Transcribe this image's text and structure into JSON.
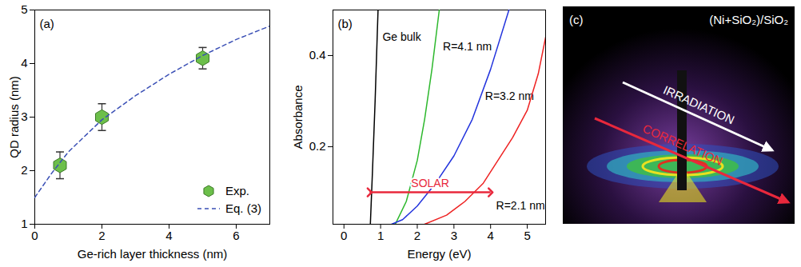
{
  "chart_data": [
    {
      "type": "scatter",
      "panel_label": "(a)",
      "x_label": "Ge-rich layer thickness (nm)",
      "y_label": "QD radius (nm)",
      "xlim": [
        0,
        7
      ],
      "xticks": [
        0,
        2,
        4,
        6
      ],
      "ylim": [
        1,
        5
      ],
      "yticks": [
        1,
        2,
        3,
        4,
        5
      ],
      "legend": "lower right",
      "series": [
        {
          "name": "Exp.",
          "type": "scatter",
          "marker": "hexagon",
          "color": "#6cbf4a",
          "x": [
            0.75,
            2,
            5
          ],
          "values": [
            2.1,
            3.0,
            4.1
          ],
          "errors": [
            0.25,
            0.25,
            0.2
          ]
        },
        {
          "name": "Eq. (3)",
          "type": "line",
          "line_style": "dashed",
          "color": "#3a4fb5",
          "x": [
            0,
            0.5,
            1,
            2,
            3,
            4,
            5,
            6,
            7
          ],
          "values": [
            1.5,
            1.95,
            2.35,
            2.95,
            3.4,
            3.8,
            4.15,
            4.45,
            4.7
          ]
        }
      ]
    },
    {
      "type": "line",
      "panel_label": "(b)",
      "x_label": "Energy (eV)",
      "y_label": "Absorbance",
      "xlim": [
        -0.3,
        5.5
      ],
      "xticks": [
        0,
        1,
        2,
        3,
        4,
        5
      ],
      "ylim": [
        0.03,
        0.5
      ],
      "yticks": [
        0.2,
        0.4
      ],
      "series": [
        {
          "name": "Ge bulk",
          "color": "#000000",
          "x": [
            0.72,
            0.78,
            0.85,
            0.93
          ],
          "values": [
            0.03,
            0.15,
            0.3,
            0.5
          ],
          "label_at": [
            1.05,
            0.44
          ]
        },
        {
          "name": "R=4.1 nm",
          "color": "#2db82d",
          "x": [
            1.4,
            1.7,
            2.0,
            2.2,
            2.4,
            2.6
          ],
          "values": [
            0.03,
            0.08,
            0.17,
            0.26,
            0.37,
            0.5
          ],
          "label_at": [
            2.7,
            0.42
          ]
        },
        {
          "name": "R=3.2 nm",
          "color": "#2233dd",
          "x": [
            1.3,
            1.6,
            2.0,
            2.5,
            3.0,
            3.5,
            4.0,
            4.5
          ],
          "values": [
            0.03,
            0.04,
            0.07,
            0.12,
            0.18,
            0.26,
            0.37,
            0.5
          ],
          "label_at": [
            3.85,
            0.31
          ]
        },
        {
          "name": "R=2.1 nm",
          "color": "#ee2222",
          "x": [
            2.2,
            2.8,
            3.3,
            3.8,
            4.2,
            4.6,
            5.0,
            5.3,
            5.5
          ],
          "values": [
            0.03,
            0.05,
            0.08,
            0.12,
            0.17,
            0.22,
            0.28,
            0.36,
            0.44
          ],
          "label_at": [
            4.15,
            0.07
          ]
        }
      ],
      "annotations": [
        {
          "text": "SOLAR",
          "x": [
            0.7,
            4
          ],
          "y": 0.1,
          "color": "#e8283c"
        }
      ]
    }
  ],
  "panel_c": {
    "label": "(c)",
    "title": "(Ni+SiO₂)/SiO₂",
    "arrows": [
      {
        "text": "IRRADIATION",
        "color": "#ffffff"
      },
      {
        "text": "CORRELATION",
        "color": "#e8283c"
      }
    ]
  }
}
